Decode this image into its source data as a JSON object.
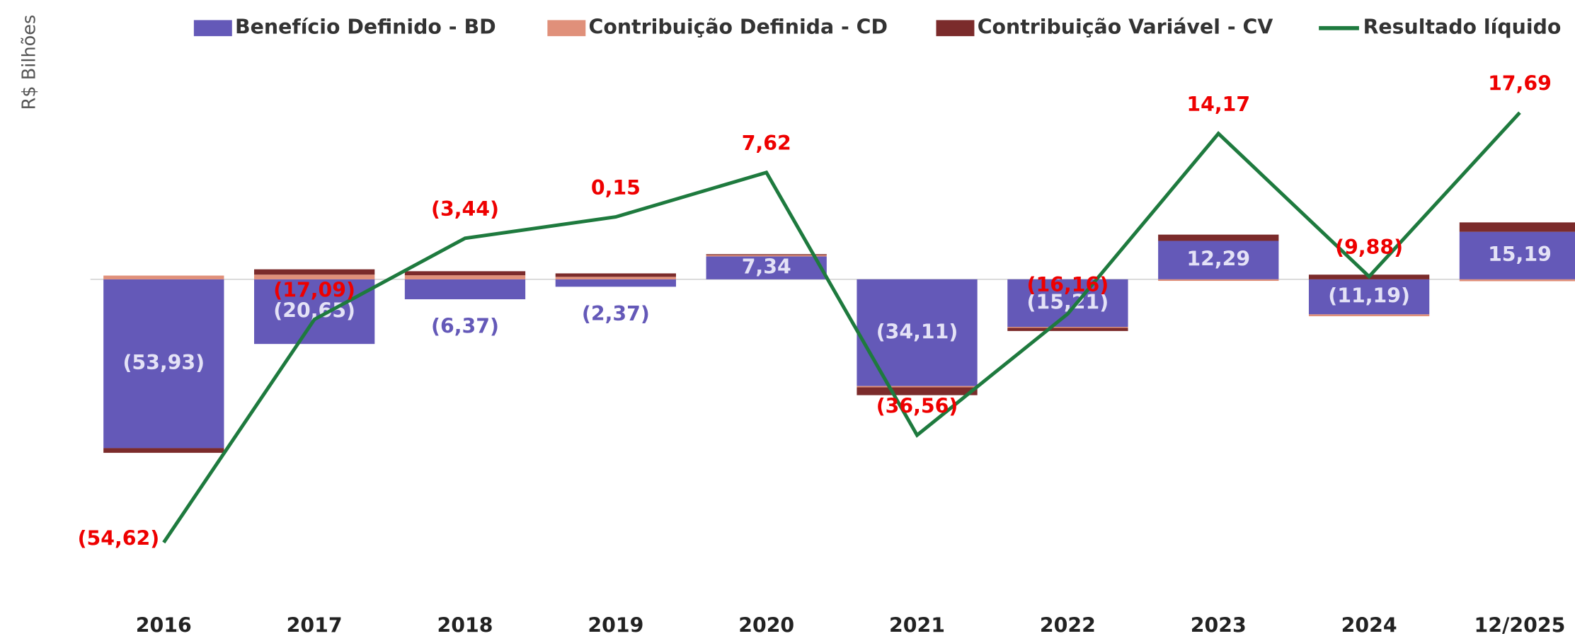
{
  "chart_data": {
    "type": "bar",
    "y_label": "R$ Bilhões",
    "categories": [
      "2016",
      "2017",
      "2018",
      "2019",
      "2020",
      "2021",
      "2022",
      "2023",
      "2024",
      "12/2025"
    ],
    "ylim": [
      -100,
      70
    ],
    "y2lim": [
      -63,
      26.5
    ],
    "legend": "top",
    "series": [
      {
        "name": "Benefício  Definido - BD",
        "type": "bar",
        "color": "#6459b8",
        "values": [
          -53.93,
          -20.65,
          -6.37,
          -2.37,
          7.34,
          -34.11,
          -15.21,
          12.29,
          -11.19,
          15.19
        ],
        "value_labels": [
          "(53,93)",
          "(20,65)",
          "(6,37)",
          "(2,37)",
          "7,34",
          "(34,11)",
          "(15,21)",
          "12,29",
          "(11,19)",
          "15,19"
        ]
      },
      {
        "name": "Contribuição Definida - CD",
        "type": "bar",
        "color": "#e0907a",
        "values": [
          1.2,
          1.5,
          1.3,
          0.8,
          0.4,
          -0.4,
          -0.3,
          -0.5,
          -0.6,
          -0.6
        ]
      },
      {
        "name": "Contribuição Variável - CV",
        "type": "bar",
        "color": "#7b2b2b",
        "values": [
          -1.5,
          1.7,
          1.3,
          1.1,
          0.3,
          -2.5,
          -1.0,
          2.0,
          1.5,
          3.0
        ]
      },
      {
        "name": "Resultado líquido",
        "type": "line",
        "axis": "y2",
        "color": "#1e7a3e",
        "values": [
          -54.62,
          -17.09,
          -3.44,
          0.15,
          7.62,
          -36.56,
          -16.16,
          14.17,
          -9.88,
          17.69
        ],
        "value_labels": [
          "(54,62)",
          "(17,09)",
          "(3,44)",
          "0,15",
          "7,62",
          "(36,56)",
          "(16,16)",
          "14,17",
          "(9,88)",
          "17,69"
        ]
      }
    ]
  }
}
